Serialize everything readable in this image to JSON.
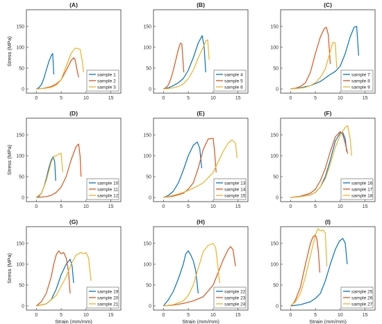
{
  "figure": {
    "background": "#ffffff"
  },
  "colors": {
    "blue": "#0072bd",
    "orange": "#d95319",
    "yellow": "#edb120"
  },
  "chart_data": [
    {
      "type": "line",
      "title": "(A)",
      "xlabel": "",
      "ylabel": "Stress (MPa)",
      "xlim": [
        -2,
        17
      ],
      "ylim": [
        -10,
        190
      ],
      "xticks": [
        0,
        5,
        10,
        15
      ],
      "yticks": [
        0,
        50,
        100,
        150
      ],
      "legend": "bottom-right",
      "series": [
        {
          "name": "sample 1",
          "color": "#0072bd",
          "x": [
            0,
            0.5,
            1,
            1.5,
            2,
            2.5,
            3,
            3.3,
            3.4,
            3.5
          ],
          "y": [
            0,
            3,
            10,
            25,
            45,
            65,
            80,
            85,
            60,
            35
          ]
        },
        {
          "name": "sample 2",
          "color": "#d95319",
          "x": [
            0,
            1,
            2,
            3,
            4,
            5,
            6,
            7,
            7.5,
            7.8,
            8.2,
            8.5
          ],
          "y": [
            0,
            1,
            3,
            6,
            12,
            22,
            45,
            68,
            75,
            70,
            45,
            28
          ]
        },
        {
          "name": "sample 3",
          "color": "#edb120",
          "x": [
            0,
            1,
            2,
            3,
            4,
            5,
            6,
            7,
            7.8,
            8.3,
            8.8,
            9.2,
            9.5
          ],
          "y": [
            0,
            1,
            2,
            4,
            9,
            22,
            55,
            85,
            98,
            97,
            95,
            70,
            40
          ]
        }
      ]
    },
    {
      "type": "line",
      "title": "(B)",
      "xlabel": "",
      "ylabel": "",
      "xlim": [
        -2,
        17
      ],
      "ylim": [
        -10,
        190
      ],
      "xticks": [
        0,
        5,
        10,
        15
      ],
      "yticks": [
        0,
        50,
        100,
        150
      ],
      "legend": "bottom-right",
      "series": [
        {
          "name": "sample 4",
          "color": "#0072bd",
          "x": [
            0,
            1,
            2,
            3,
            4,
            5,
            6,
            7,
            7.8,
            8.2,
            8.5
          ],
          "y": [
            0,
            3,
            8,
            15,
            25,
            45,
            75,
            110,
            128,
            100,
            40
          ]
        },
        {
          "name": "sample 5",
          "color": "#d95319",
          "x": [
            0,
            0.5,
            1,
            1.5,
            2,
            2.5,
            3,
            3.4,
            3.7,
            3.9,
            4.1
          ],
          "y": [
            0,
            3,
            10,
            25,
            45,
            70,
            95,
            110,
            108,
            75,
            40
          ]
        },
        {
          "name": "sample 6",
          "color": "#edb120",
          "x": [
            0,
            1,
            2,
            3,
            4,
            5,
            6,
            7,
            8,
            8.5,
            8.9,
            9.2
          ],
          "y": [
            0,
            1,
            3,
            6,
            12,
            25,
            45,
            75,
            100,
            115,
            118,
            70
          ]
        }
      ]
    },
    {
      "type": "line",
      "title": "(C)",
      "xlabel": "",
      "ylabel": "",
      "xlim": [
        -2,
        17
      ],
      "ylim": [
        -10,
        190
      ],
      "xticks": [
        0,
        5,
        10,
        15
      ],
      "yticks": [
        0,
        50,
        100,
        150
      ],
      "legend": "bottom-right",
      "series": [
        {
          "name": "sample 7",
          "color": "#0072bd",
          "x": [
            0,
            2,
            4,
            6,
            8,
            9,
            10,
            11,
            12,
            12.8,
            13.3,
            13.7
          ],
          "y": [
            0,
            3,
            8,
            18,
            35,
            42,
            55,
            85,
            125,
            148,
            150,
            80
          ]
        },
        {
          "name": "sample 8",
          "color": "#d95319",
          "x": [
            0,
            1,
            2,
            3,
            4,
            5,
            6,
            6.8,
            7.2,
            7.6,
            8
          ],
          "y": [
            0,
            2,
            6,
            15,
            40,
            85,
            125,
            145,
            148,
            130,
            60
          ]
        },
        {
          "name": "sample 9",
          "color": "#edb120",
          "x": [
            0,
            1,
            2,
            3,
            4,
            5,
            6,
            7,
            8,
            8.5,
            9,
            9.3
          ],
          "y": [
            0,
            1,
            2,
            4,
            8,
            15,
            28,
            48,
            90,
            112,
            110,
            50
          ]
        }
      ]
    },
    {
      "type": "line",
      "title": "(D)",
      "xlabel": "",
      "ylabel": "Stress (MPa)",
      "xlim": [
        -2,
        17
      ],
      "ylim": [
        -10,
        190
      ],
      "xticks": [
        0,
        5,
        10,
        15
      ],
      "yticks": [
        0,
        50,
        100,
        150
      ],
      "legend": "bottom-right",
      "series": [
        {
          "name": "sample 10",
          "color": "#0072bd",
          "x": [
            0,
            0.5,
            1,
            1.5,
            2,
            2.5,
            3,
            3.4,
            3.7,
            3.9
          ],
          "y": [
            0,
            3,
            10,
            25,
            45,
            70,
            90,
            98,
            85,
            40
          ]
        },
        {
          "name": "sample 11",
          "color": "#d95319",
          "x": [
            0,
            2,
            3,
            4,
            5,
            6,
            7,
            8,
            8.5,
            8.8,
            9
          ],
          "y": [
            0,
            2,
            5,
            12,
            25,
            50,
            90,
            122,
            128,
            100,
            50
          ]
        },
        {
          "name": "sample 12",
          "color": "#edb120",
          "x": [
            0,
            1,
            2,
            3,
            3.5,
            4,
            4.5,
            5,
            5.3
          ],
          "y": [
            0,
            10,
            40,
            85,
            98,
            100,
            104,
            106,
            60
          ]
        }
      ]
    },
    {
      "type": "line",
      "title": "(E)",
      "xlabel": "",
      "ylabel": "",
      "xlim": [
        -2,
        17
      ],
      "ylim": [
        -10,
        190
      ],
      "xticks": [
        0,
        5,
        10,
        15
      ],
      "yticks": [
        0,
        50,
        100,
        150
      ],
      "legend": "bottom-right",
      "series": [
        {
          "name": "sample 13",
          "color": "#0072bd",
          "x": [
            0,
            1,
            2,
            3,
            4,
            5,
            6,
            6.8,
            7.3,
            7.7
          ],
          "y": [
            0,
            5,
            15,
            35,
            65,
            100,
            125,
            133,
            118,
            70
          ]
        },
        {
          "name": "sample 14",
          "color": "#d95319",
          "x": [
            0,
            2,
            4,
            5,
            6,
            7,
            8,
            9,
            10,
            10.3,
            10.6
          ],
          "y": [
            0,
            3,
            10,
            20,
            35,
            70,
            115,
            140,
            142,
            110,
            60
          ]
        },
        {
          "name": "sample 15",
          "color": "#edb120",
          "x": [
            0,
            2,
            4,
            6,
            8,
            10,
            11,
            12,
            13,
            13.8,
            14.5,
            14.8
          ],
          "y": [
            0,
            5,
            12,
            22,
            35,
            60,
            85,
            110,
            130,
            138,
            130,
            95
          ]
        }
      ]
    },
    {
      "type": "line",
      "title": "(F)",
      "xlabel": "",
      "ylabel": "",
      "xlim": [
        -2,
        17
      ],
      "ylim": [
        -10,
        190
      ],
      "xticks": [
        0,
        5,
        10,
        15
      ],
      "yticks": [
        0,
        50,
        100,
        150
      ],
      "legend": "bottom-right",
      "series": [
        {
          "name": "sample 16",
          "color": "#0072bd",
          "x": [
            0,
            2,
            4,
            5,
            6,
            7,
            8,
            9,
            10,
            10.5,
            11,
            11.3
          ],
          "y": [
            0,
            2,
            6,
            12,
            25,
            50,
            90,
            135,
            155,
            156,
            140,
            110
          ]
        },
        {
          "name": "sample 17",
          "color": "#d95319",
          "x": [
            0,
            2,
            4,
            5,
            6,
            7,
            8,
            9,
            10,
            10.5,
            11,
            11.5
          ],
          "y": [
            0,
            3,
            10,
            20,
            40,
            70,
            110,
            145,
            158,
            150,
            130,
            105
          ]
        },
        {
          "name": "sample 18",
          "color": "#edb120",
          "x": [
            0,
            2,
            4,
            5,
            6,
            7,
            8,
            9,
            10,
            11,
            11.5,
            12,
            12.3
          ],
          "y": [
            0,
            2,
            6,
            12,
            25,
            45,
            80,
            120,
            150,
            168,
            172,
            140,
            100
          ]
        }
      ]
    },
    {
      "type": "line",
      "title": "(G)",
      "xlabel": "Strain (mm/mm)",
      "ylabel": "Stress (MPa)",
      "xlim": [
        -2,
        17
      ],
      "ylim": [
        -10,
        190
      ],
      "xticks": [
        0,
        5,
        10,
        15
      ],
      "yticks": [
        0,
        50,
        100,
        150
      ],
      "legend": "bottom-right",
      "series": [
        {
          "name": "sample 19",
          "color": "#0072bd",
          "x": [
            0,
            2,
            3,
            4,
            5,
            6,
            6.8,
            7.2,
            7.5
          ],
          "y": [
            0,
            5,
            15,
            40,
            75,
            100,
            112,
            95,
            55
          ]
        },
        {
          "name": "sample 20",
          "color": "#d95319",
          "x": [
            0,
            1,
            2,
            3,
            3.5,
            4,
            4.5,
            5,
            5.5,
            6,
            6.5,
            6.8
          ],
          "y": [
            0,
            10,
            30,
            70,
            100,
            122,
            132,
            125,
            128,
            115,
            80,
            30
          ]
        },
        {
          "name": "sample 21",
          "color": "#edb120",
          "x": [
            0,
            2,
            4,
            6,
            7,
            8,
            9,
            9.5,
            10,
            10.5,
            11
          ],
          "y": [
            0,
            5,
            25,
            70,
            100,
            122,
            128,
            125,
            128,
            115,
            60
          ]
        }
      ]
    },
    {
      "type": "line",
      "title": "(H)",
      "xlabel": "Strain (mm/mm)",
      "ylabel": "",
      "xlim": [
        -2,
        17
      ],
      "ylim": [
        -10,
        190
      ],
      "xticks": [
        0,
        5,
        10,
        15
      ],
      "yticks": [
        0,
        50,
        100,
        150
      ],
      "legend": "bottom-right",
      "series": [
        {
          "name": "sample 22",
          "color": "#0072bd",
          "x": [
            0,
            1,
            2,
            3,
            4,
            4.5,
            5,
            5.5,
            6,
            6.5,
            7
          ],
          "y": [
            0,
            15,
            35,
            65,
            100,
            125,
            132,
            122,
            108,
            85,
            30
          ]
        },
        {
          "name": "sample 23",
          "color": "#d95319",
          "x": [
            0,
            2,
            4,
            6,
            8,
            10,
            11,
            12,
            13,
            13.5,
            14,
            14.5
          ],
          "y": [
            0,
            2,
            6,
            12,
            22,
            50,
            80,
            110,
            135,
            142,
            135,
            95
          ]
        },
        {
          "name": "sample 24",
          "color": "#edb120",
          "x": [
            0,
            2,
            4,
            5,
            6,
            7,
            8,
            9,
            10,
            10.5,
            11,
            11.3
          ],
          "y": [
            0,
            3,
            12,
            25,
            50,
            90,
            130,
            145,
            150,
            140,
            90,
            55
          ]
        }
      ]
    },
    {
      "type": "line",
      "title": "(I)",
      "xlabel": "Strain (mm/mm)",
      "ylabel": "",
      "xlim": [
        -2,
        17
      ],
      "ylim": [
        -10,
        190
      ],
      "xticks": [
        0,
        5,
        10,
        15
      ],
      "yticks": [
        0,
        50,
        100,
        150
      ],
      "legend": "bottom-right",
      "series": [
        {
          "name": "sample 25",
          "color": "#0072bd",
          "x": [
            0,
            2,
            4,
            5,
            6,
            7,
            8,
            9,
            9.8,
            10.5,
            11,
            11.4
          ],
          "y": [
            0,
            3,
            10,
            18,
            30,
            60,
            100,
            135,
            155,
            162,
            150,
            100
          ]
        },
        {
          "name": "sample 26",
          "color": "#d95319",
          "x": [
            0,
            0.5,
            1,
            2,
            3,
            4,
            4.5,
            5,
            5.3,
            5.6,
            5.9
          ],
          "y": [
            0,
            5,
            15,
            45,
            100,
            150,
            165,
            170,
            160,
            130,
            80
          ]
        },
        {
          "name": "sample 27",
          "color": "#edb120",
          "x": [
            0,
            1,
            2,
            3,
            4,
            5,
            5.5,
            6,
            6.5,
            7,
            7.3
          ],
          "y": [
            0,
            10,
            30,
            70,
            120,
            170,
            185,
            180,
            182,
            175,
            95
          ]
        }
      ]
    }
  ]
}
